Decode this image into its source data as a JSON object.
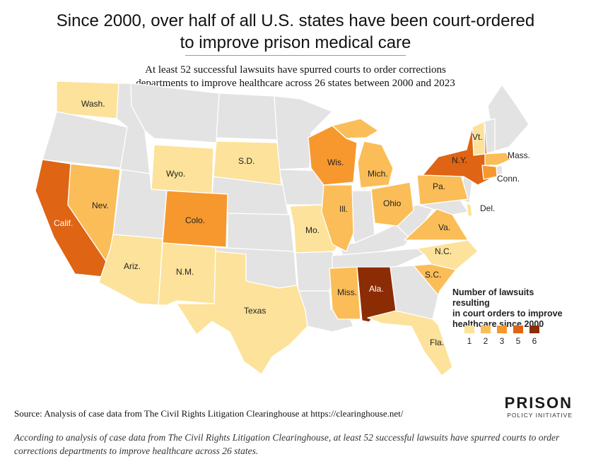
{
  "header": {
    "title_line1": "Since 2000, over half of all U.S. states have been court-ordered",
    "title_line2": "to improve prison medical care",
    "subtitle_line1": "At least 52 successful lawsuits have spurred courts to order corrections",
    "subtitle_line2": "departments to improve healthcare across 26 states between 2000 and 2023"
  },
  "colors": {
    "none": "#e3e3e3",
    "c1": "#fce29a",
    "c2": "#fbbd58",
    "c3": "#f6982d",
    "c5": "#df6414",
    "c6": "#8c2c05"
  },
  "state_labels": {
    "wash": "Wash.",
    "calif": "Calif.",
    "nev": "Nev.",
    "wyo": "Wyo.",
    "sd": "S.D.",
    "colo": "Colo.",
    "ariz": "Ariz.",
    "nm": "N.M.",
    "texas": "Texas",
    "mo": "Mo.",
    "wis": "Wis.",
    "ill": "Ill.",
    "mich": "Mich.",
    "ohio": "Ohio",
    "miss": "Miss.",
    "ala": "Ala.",
    "fla": "Fla.",
    "pa": "Pa.",
    "va": "Va.",
    "nc": "N.C.",
    "sc": "S.C.",
    "ny": "N.Y.",
    "vt": "Vt.",
    "mass": "Mass.",
    "conn": "Conn.",
    "del": "Del."
  },
  "legend": {
    "title_line1": "Number of lawsuits resulting",
    "title_line2": "in court orders to improve",
    "title_line3": "healthcare since 2000",
    "items": [
      {
        "value": "1",
        "color": "#fce29a"
      },
      {
        "value": "2",
        "color": "#fbbd58"
      },
      {
        "value": "3",
        "color": "#f6982d"
      },
      {
        "value": "5",
        "color": "#df6414"
      },
      {
        "value": "6",
        "color": "#8c2c05"
      }
    ]
  },
  "footer": {
    "source": "Source: Analysis of case data from The Civil Rights Litigation Clearinghouse at https://clearinghouse.net/",
    "logo_top": "PRISON",
    "logo_bottom": "POLICY INITIATIVE",
    "caption": "According to analysis of case data from The Civil Rights Litigation Clearinghouse, at least 52 successful lawsuits have spurred courts to order corrections departments to improve healthcare across 26 states."
  }
}
